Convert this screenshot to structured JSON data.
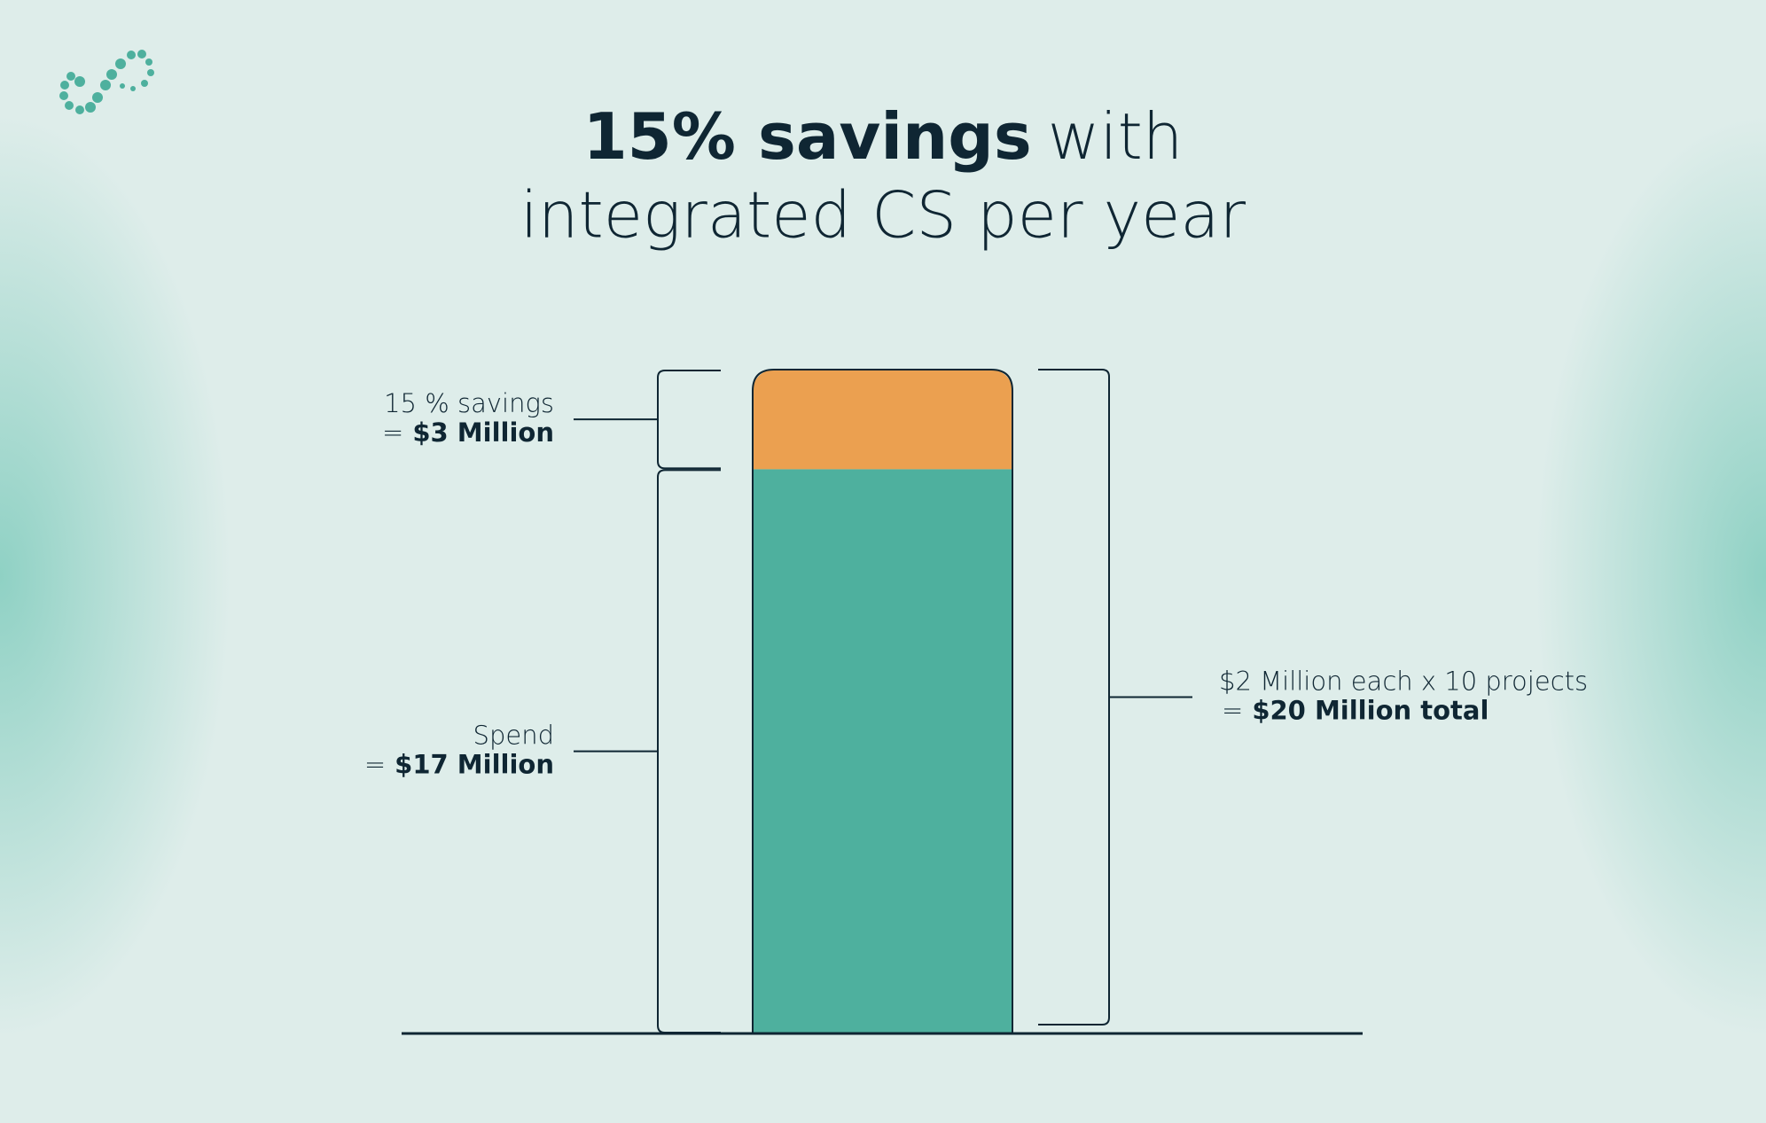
{
  "chart_data": {
    "type": "stacked_bar",
    "title": {
      "bold": "15% savings",
      "rest": "with",
      "line2": "integrated CS per year"
    },
    "categories": [
      null
    ],
    "series": [
      {
        "name": "Spend",
        "color": "#4eb09e",
        "values": [
          17
        ],
        "value_labels": [
          "$17 Million"
        ]
      },
      {
        "name": "15 % savings",
        "color": "#eba050",
        "values": [
          3
        ],
        "value_labels": [
          "$3 Million"
        ]
      }
    ],
    "label_prefix": "=",
    "total": 20,
    "total_label": "$2 Million each x 10 projects",
    "total_value_label": "$20 Million total"
  }
}
